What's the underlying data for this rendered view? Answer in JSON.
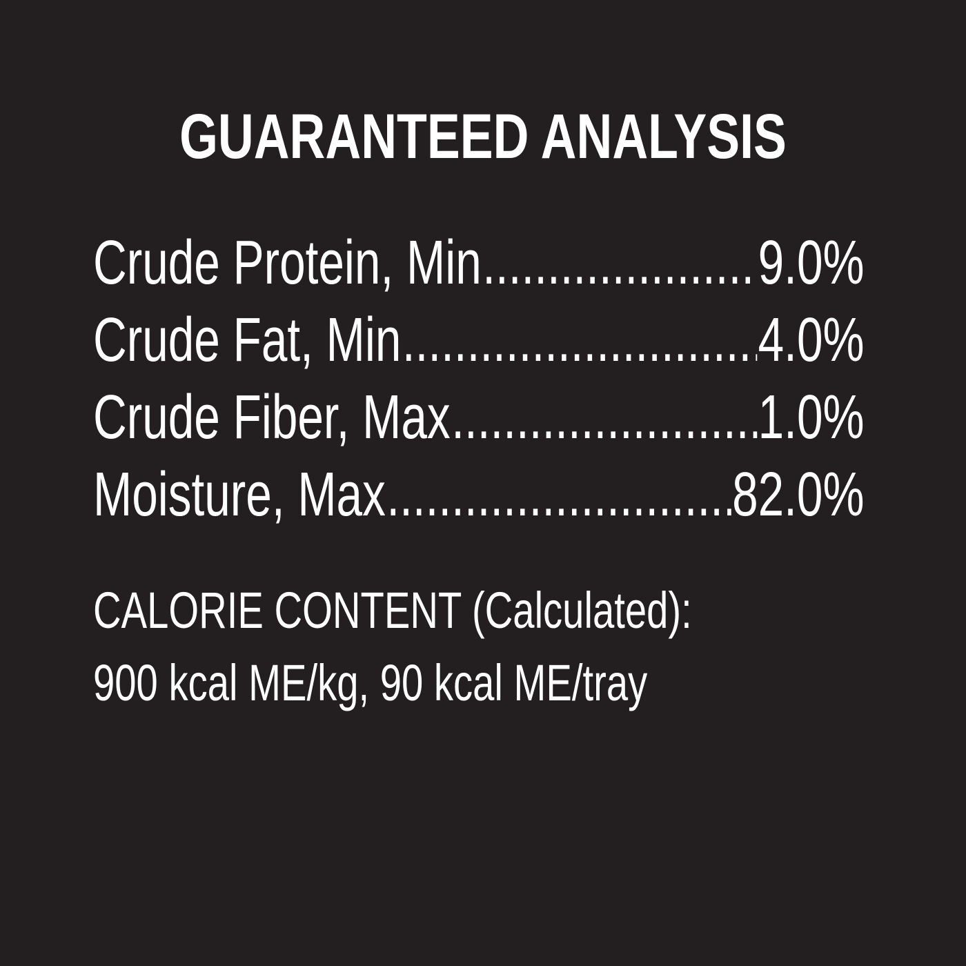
{
  "title": "GUARANTEED ANALYSIS",
  "analysis": [
    {
      "label": "Crude Protein, Min",
      "value": "9.0%"
    },
    {
      "label": "Crude Fat, Min",
      "value": "4.0%"
    },
    {
      "label": "Crude Fiber, Max",
      "value": "1.0%"
    },
    {
      "label": "Moisture, Max",
      "value": "82.0%"
    }
  ],
  "calorie": {
    "heading": "CALORIE CONTENT (Calculated):",
    "value": "900 kcal ME/kg, 90 kcal ME/tray"
  },
  "colors": {
    "background": "#231f20",
    "text": "#ffffff"
  }
}
